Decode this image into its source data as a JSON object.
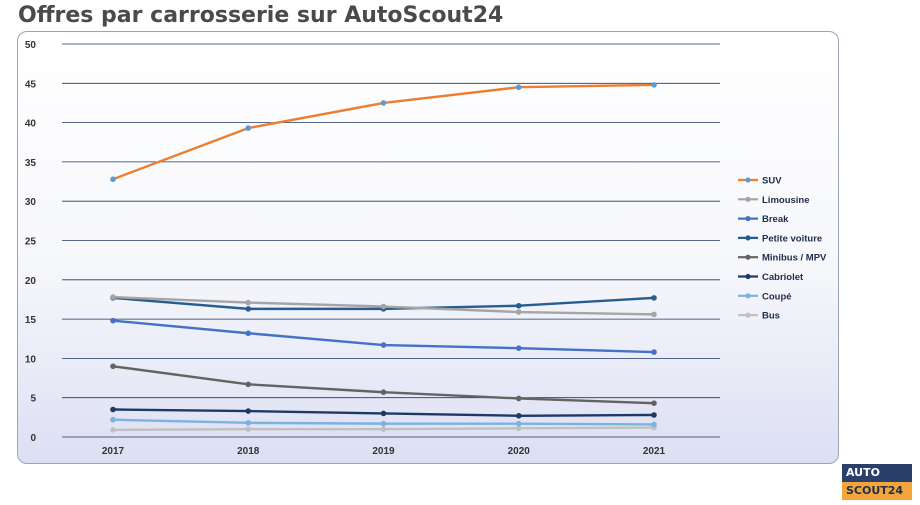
{
  "title": "Offres par carrosserie sur AutoScout24",
  "logo": {
    "top": "AUTO",
    "bottom": "SCOUT24"
  },
  "chart_data": {
    "type": "line",
    "categories": [
      "2017",
      "2018",
      "2019",
      "2020",
      "2021"
    ],
    "ylim": [
      0,
      50
    ],
    "yticks": [
      0,
      5,
      10,
      15,
      20,
      25,
      30,
      35,
      40,
      45,
      50
    ],
    "grid": true,
    "legend_position": "right",
    "series": [
      {
        "name": "SUV",
        "color": "#ed7d31",
        "marker": "#5b9bd5",
        "values": [
          32.8,
          39.3,
          42.5,
          44.5,
          44.8
        ]
      },
      {
        "name": "Limousine",
        "color": "#a5a5a5",
        "marker": "#a5a5a5",
        "values": [
          17.8,
          17.1,
          16.6,
          15.9,
          15.6
        ]
      },
      {
        "name": "Break",
        "color": "#4472c4",
        "marker": "#4472c4",
        "values": [
          14.8,
          13.2,
          11.7,
          11.3,
          10.8
        ]
      },
      {
        "name": "Petite voiture",
        "color": "#255e91",
        "marker": "#255e91",
        "values": [
          17.7,
          16.3,
          16.3,
          16.7,
          17.7
        ]
      },
      {
        "name": "Minibus / MPV",
        "color": "#636363",
        "marker": "#636363",
        "values": [
          9.0,
          6.7,
          5.7,
          4.9,
          4.3
        ]
      },
      {
        "name": "Cabriolet",
        "color": "#1f3864",
        "marker": "#1f3864",
        "values": [
          3.5,
          3.3,
          3.0,
          2.7,
          2.8
        ]
      },
      {
        "name": "Coupé",
        "color": "#7ab3e0",
        "marker": "#7ab3e0",
        "values": [
          2.2,
          1.8,
          1.7,
          1.7,
          1.6
        ]
      },
      {
        "name": "Bus",
        "color": "#c0c0c0",
        "marker": "#c0c0c0",
        "values": [
          0.9,
          1.0,
          1.0,
          1.1,
          1.2
        ]
      }
    ]
  }
}
